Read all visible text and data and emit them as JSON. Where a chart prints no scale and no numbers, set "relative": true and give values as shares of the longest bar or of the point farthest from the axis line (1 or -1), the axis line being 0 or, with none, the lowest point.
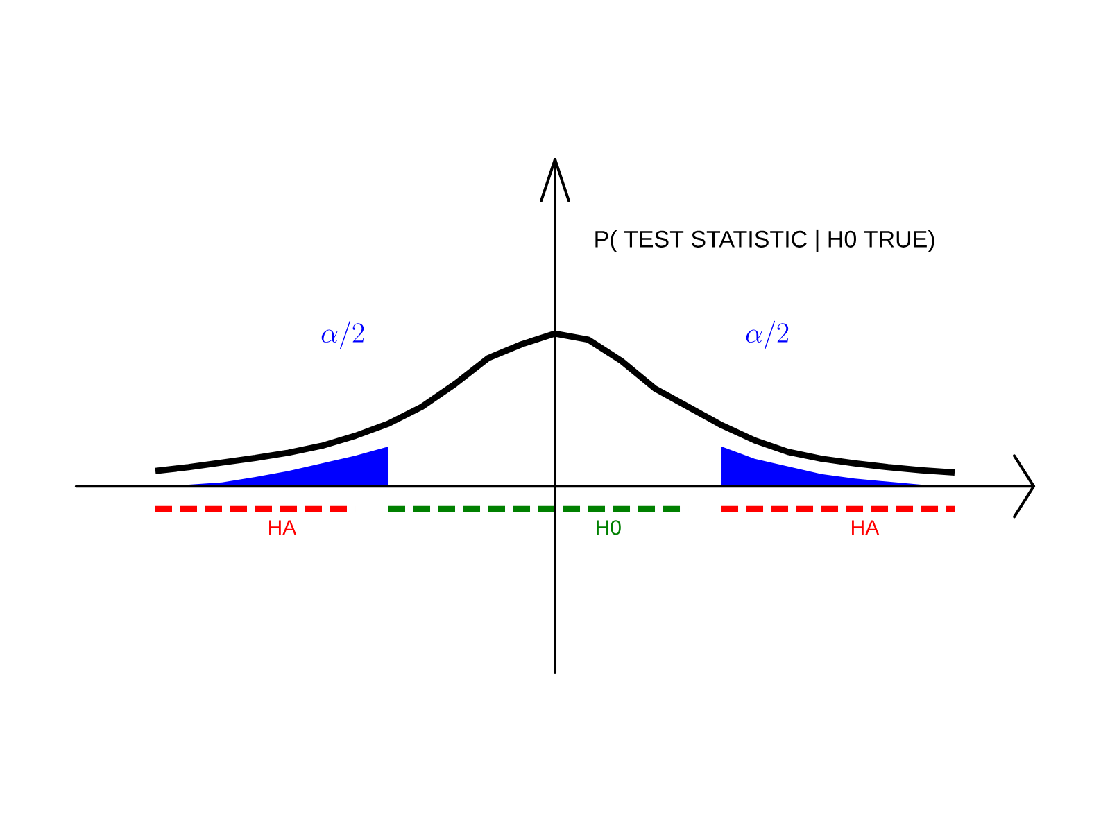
{
  "chart_data": {
    "type": "line",
    "relative": true,
    "ylabel": "P( TEST STATISTIC | H0 TRUE)",
    "annotations": [
      "\\alpha/2",
      "\\alpha/2"
    ],
    "categories": [
      null,
      null,
      null,
      null,
      null,
      null,
      null,
      null,
      null,
      null,
      null,
      null,
      null,
      null,
      null,
      null,
      null,
      null,
      null,
      null,
      null,
      null,
      null,
      null,
      null
    ],
    "series": [
      {
        "type": "area",
        "color": "#0000ff",
        "values": [
          0.0,
          0.01,
          0.025,
          0.06,
          0.1,
          0.15,
          0.2,
          0.26,
          null,
          null,
          null,
          null,
          null,
          null,
          null,
          null,
          null,
          null,
          null,
          null,
          null,
          null,
          null,
          null,
          null
        ]
      },
      {
        "type": "area",
        "color": "#0000ff",
        "values": [
          null,
          null,
          null,
          null,
          null,
          null,
          null,
          null,
          null,
          null,
          null,
          null,
          null,
          null,
          null,
          null,
          null,
          0.26,
          0.18,
          0.13,
          0.08,
          0.05,
          0.03,
          0.01,
          0.0
        ]
      },
      {
        "color": "#000000",
        "values": [
          0.1,
          0.125,
          0.155,
          0.185,
          0.22,
          0.265,
          0.33,
          0.41,
          0.52,
          0.67,
          0.84,
          0.93,
          1.0,
          0.96,
          0.82,
          0.64,
          0.52,
          0.4,
          0.3,
          0.225,
          0.18,
          0.15,
          0.125,
          0.105,
          0.09
        ]
      },
      {
        "name": "HA",
        "color": "#ff0000",
        "line_style": "dashed",
        "values": [
          -0.15,
          -0.15,
          -0.15,
          -0.15,
          -0.15,
          -0.15,
          -0.15,
          null,
          null,
          null,
          null,
          null,
          null,
          null,
          null,
          null,
          null,
          null,
          null,
          null,
          null,
          null,
          null,
          null,
          null
        ]
      },
      {
        "name": "H0",
        "color": "#008000",
        "line_style": "dashed",
        "values": [
          null,
          null,
          null,
          null,
          null,
          null,
          null,
          -0.15,
          -0.15,
          -0.15,
          -0.15,
          -0.15,
          -0.15,
          -0.15,
          -0.15,
          -0.15,
          -0.15,
          null,
          null,
          null,
          null,
          null,
          null,
          null,
          null
        ]
      },
      {
        "name": "HA",
        "color": "#ff0000",
        "line_style": "dashed",
        "values": [
          null,
          null,
          null,
          null,
          null,
          null,
          null,
          null,
          null,
          null,
          null,
          null,
          null,
          null,
          null,
          null,
          null,
          -0.15,
          -0.15,
          -0.15,
          -0.15,
          -0.15,
          -0.15,
          -0.15,
          -0.15
        ]
      }
    ]
  }
}
